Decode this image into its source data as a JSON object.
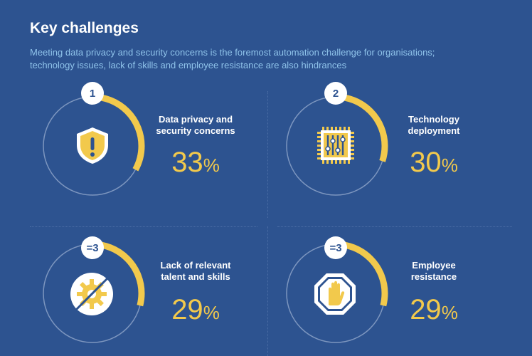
{
  "header": {
    "title": "Key challenges",
    "subtitle": "Meeting data privacy and security concerns is the foremost automation challenge for organisations; technology issues, lack of skills and employee resistance are also hindrances"
  },
  "colors": {
    "background": "#2d5390",
    "accent": "#f2c94c",
    "subtitle": "#8fc3ea"
  },
  "challenges": [
    {
      "rank": "1",
      "label_line1": "Data privacy and",
      "label_line2": "security concerns",
      "value": "33",
      "unit": "%",
      "icon": "shield-alert-icon",
      "fraction": 0.33
    },
    {
      "rank": "2",
      "label_line1": "Technology",
      "label_line2": "deployment",
      "value": "30",
      "unit": "%",
      "icon": "chip-icon",
      "fraction": 0.3
    },
    {
      "rank": "=3",
      "label_line1": "Lack of relevant",
      "label_line2": "talent and skills",
      "value": "29",
      "unit": "%",
      "icon": "no-gear-icon",
      "fraction": 0.29
    },
    {
      "rank": "=3",
      "label_line1": "Employee",
      "label_line2": "resistance",
      "value": "29",
      "unit": "%",
      "icon": "stop-hand-icon",
      "fraction": 0.29
    }
  ]
}
